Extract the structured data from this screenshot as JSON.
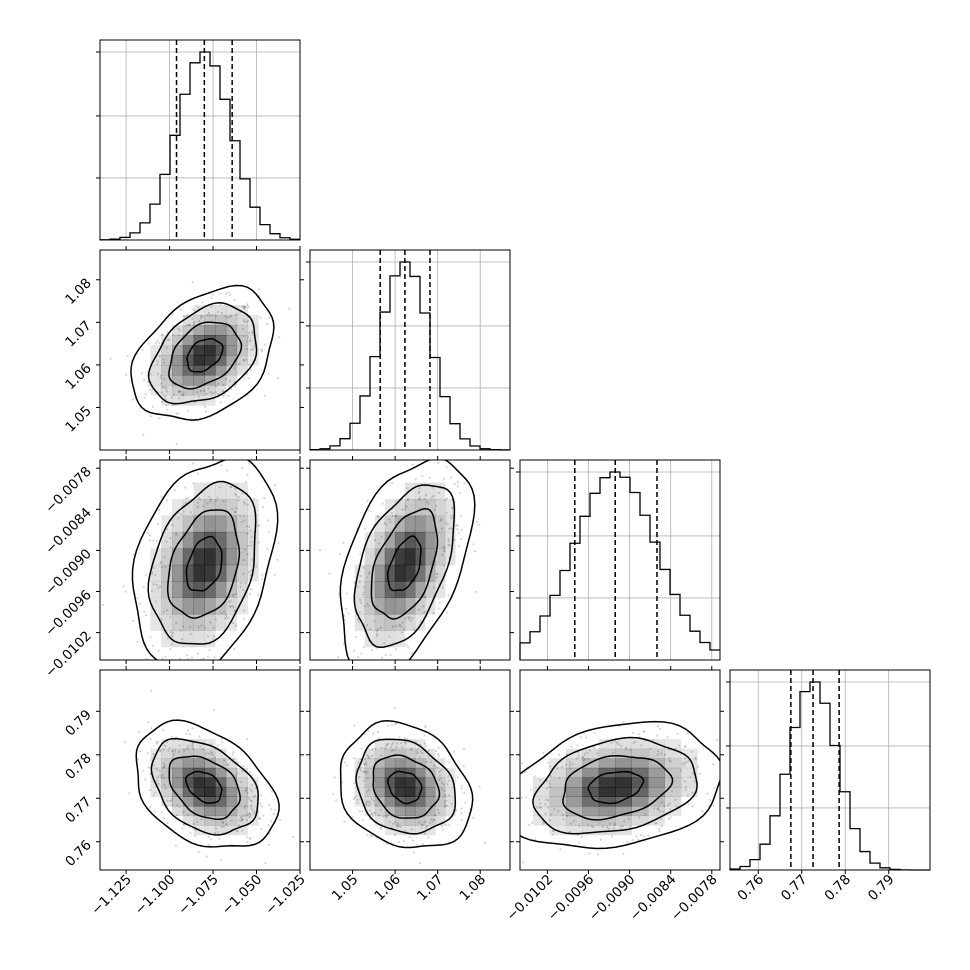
{
  "chart_data": {
    "type": "corner",
    "parameters": [
      {
        "range": [
          -1.14,
          -1.025
        ],
        "ticks": [
          -1.125,
          -1.1,
          -1.075,
          -1.05,
          -1.025
        ],
        "tick_labels": [
          "−1.125",
          "−1.100",
          "−1.075",
          "−1.050",
          "−1.025"
        ],
        "quantiles": [
          -1.096,
          -1.08,
          -1.064
        ],
        "median": -1.08,
        "sigma": 0.0155
      },
      {
        "range": [
          1.04,
          1.087
        ],
        "ticks": [
          1.05,
          1.06,
          1.07,
          1.08
        ],
        "tick_labels": [
          "1.05",
          "1.06",
          "1.07",
          "1.08"
        ],
        "quantiles": [
          1.0565,
          1.0623,
          1.0682
        ],
        "median": 1.0623,
        "sigma": 0.0059
      },
      {
        "range": [
          -0.0106,
          -0.00768
        ],
        "ticks": [
          -0.0102,
          -0.0096,
          -0.009,
          -0.0084,
          -0.0078
        ],
        "tick_labels": [
          "−0.0102",
          "−0.0096",
          "−0.0090",
          "−0.0084",
          "−0.0078"
        ],
        "quantiles": [
          -0.0098,
          -0.00921,
          -0.0086
        ],
        "median": -0.00921,
        "sigma": 0.0006
      },
      {
        "range": [
          0.7535,
          0.7995
        ],
        "ticks": [
          0.76,
          0.77,
          0.78,
          0.79
        ],
        "tick_labels": [
          "0.76",
          "0.77",
          "0.78",
          "0.79"
        ],
        "quantiles": [
          0.7675,
          0.7726,
          0.7786
        ],
        "median": 0.7726,
        "sigma": 0.0055
      }
    ],
    "histogram": {
      "bins": 20,
      "quantile_line_style": "dashed",
      "grid": true
    },
    "pairs": [
      {
        "row": 1,
        "col": 0,
        "correlation": 0.35
      },
      {
        "row": 2,
        "col": 0,
        "correlation": 0.3
      },
      {
        "row": 2,
        "col": 1,
        "correlation": 0.45
      },
      {
        "row": 3,
        "col": 0,
        "correlation": -0.35
      },
      {
        "row": 3,
        "col": 1,
        "correlation": -0.2
      },
      {
        "row": 3,
        "col": 2,
        "correlation": 0.25
      }
    ],
    "contour_levels": [
      "0.5 sigma",
      "1 sigma",
      "1.5 sigma",
      "2 sigma"
    ],
    "colors": {
      "axes": "#000000",
      "grid": "#b0b0b0",
      "points": "#888888",
      "density": "#000000",
      "contour": "#000000"
    }
  }
}
